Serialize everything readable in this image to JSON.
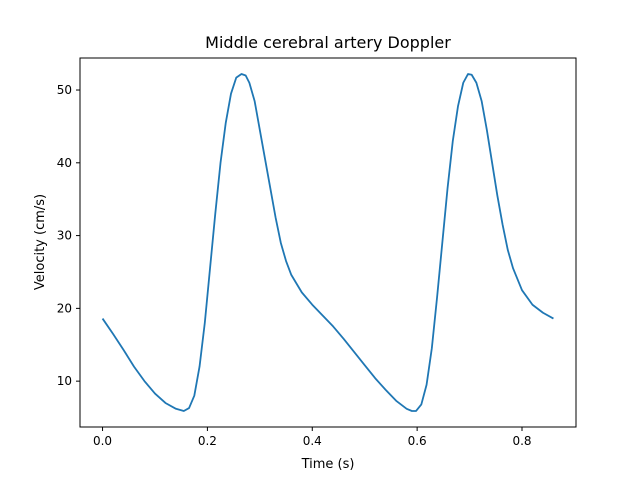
{
  "chart_data": {
    "type": "line",
    "title": "Middle cerebral artery Doppler",
    "xlabel": "Time (s)",
    "ylabel": "Velocity (cm/s)",
    "xlim": [
      -0.043,
      0.903
    ],
    "ylim": [
      3.7,
      54.4
    ],
    "xticks": [
      0.0,
      0.2,
      0.4,
      0.6,
      0.8
    ],
    "xtick_labels": [
      "0.0",
      "0.2",
      "0.4",
      "0.6",
      "0.8"
    ],
    "yticks": [
      10,
      20,
      30,
      40,
      50
    ],
    "ytick_labels": [
      "10",
      "20",
      "30",
      "40",
      "50"
    ],
    "grid": false,
    "series": [
      {
        "color": "#1f77b4",
        "x": [
          0.0,
          0.02,
          0.04,
          0.06,
          0.08,
          0.1,
          0.12,
          0.14,
          0.155,
          0.165,
          0.175,
          0.185,
          0.195,
          0.205,
          0.215,
          0.225,
          0.235,
          0.245,
          0.255,
          0.265,
          0.273,
          0.28,
          0.29,
          0.3,
          0.31,
          0.32,
          0.33,
          0.34,
          0.35,
          0.36,
          0.38,
          0.4,
          0.42,
          0.44,
          0.46,
          0.48,
          0.5,
          0.52,
          0.54,
          0.56,
          0.58,
          0.59,
          0.598,
          0.608,
          0.618,
          0.628,
          0.638,
          0.648,
          0.658,
          0.668,
          0.678,
          0.688,
          0.697,
          0.704,
          0.713,
          0.723,
          0.733,
          0.743,
          0.753,
          0.763,
          0.773,
          0.783,
          0.8,
          0.82,
          0.84,
          0.86
        ],
        "y": [
          18.6,
          16.5,
          14.3,
          12.0,
          10.0,
          8.3,
          7.0,
          6.2,
          5.9,
          6.3,
          8.0,
          12.0,
          18.0,
          25.5,
          33.0,
          40.0,
          45.5,
          49.5,
          51.7,
          52.2,
          52.0,
          51.0,
          48.5,
          44.5,
          40.5,
          36.5,
          32.5,
          29.0,
          26.5,
          24.6,
          22.2,
          20.5,
          19.0,
          17.5,
          15.8,
          14.0,
          12.2,
          10.4,
          8.8,
          7.3,
          6.2,
          5.9,
          5.9,
          6.8,
          9.5,
          14.5,
          21.5,
          29.0,
          36.5,
          43.0,
          47.8,
          51.0,
          52.2,
          52.1,
          51.0,
          48.5,
          44.5,
          40.0,
          35.5,
          31.5,
          28.0,
          25.5,
          22.5,
          20.5,
          19.4,
          18.6
        ]
      }
    ]
  }
}
